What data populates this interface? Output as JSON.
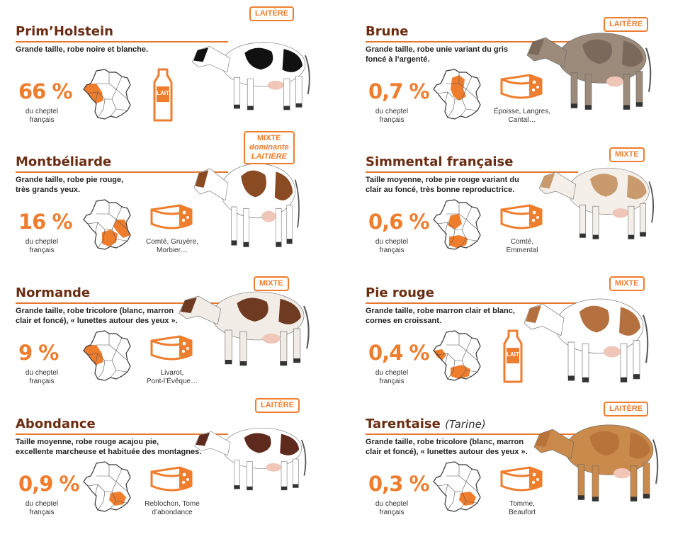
{
  "colors": {
    "accent": "#ef7d2e",
    "title": "#6b2d12"
  },
  "breeds": [
    {
      "name": "Prim’Holstein",
      "subtitle": "",
      "desc1": "Grande taille, robe noire et blanche.",
      "desc2": "",
      "percent": "66 %",
      "percent_caption1": "du cheptel",
      "percent_caption2": "français",
      "product_icon": "milk-bottle-icon",
      "product_label": "LAIT",
      "product_caption1": "",
      "product_caption2": "",
      "badge1": "LAITÈRE",
      "badge2": "",
      "badge3": "",
      "region": "north-west-france",
      "cow_colors": [
        "#111111",
        "#ffffff"
      ]
    },
    {
      "name": "Brune",
      "subtitle": "",
      "desc1": "Grande taille, robe unie variant du gris",
      "desc2": "foncé à l’argenté.",
      "percent": "0,7 %",
      "percent_caption1": "du cheptel",
      "percent_caption2": "français",
      "product_icon": "cheese-icon",
      "product_label": "",
      "product_caption1": "Époisse, Langres,",
      "product_caption2": "Cantal…",
      "badge1": "LAITÈRE",
      "badge2": "",
      "badge3": "",
      "region": "center-france",
      "cow_colors": [
        "#7b6a5c",
        "#9c8b7a"
      ]
    },
    {
      "name": "Montbéliarde",
      "subtitle": "",
      "desc1": "Grande taille, robe pie rouge,",
      "desc2": "très grands yeux.",
      "percent": "16 %",
      "percent_caption1": "du cheptel",
      "percent_caption2": "français",
      "product_icon": "cheese-icon",
      "product_label": "",
      "product_caption1": "Comté, Gruyère,",
      "product_caption2": "Morbier…",
      "badge1": "MIXTE",
      "badge2": "dominante",
      "badge3": "LAITIÈRE",
      "region": "east-and-south-france",
      "cow_colors": [
        "#8a4a22",
        "#ffffff"
      ]
    },
    {
      "name": "Simmental française",
      "subtitle": "",
      "desc1": "Taille moyenne, robe pie rouge variant du",
      "desc2": "clair au foncé, très bonne reproductrice.",
      "percent": "0,6 %",
      "percent_caption1": "du cheptel",
      "percent_caption2": "français",
      "product_icon": "cheese-icon",
      "product_label": "",
      "product_caption1": "Comté,",
      "product_caption2": "Emmental",
      "badge1": "MIXTE",
      "badge2": "",
      "badge3": "",
      "region": "center-and-south-france",
      "cow_colors": [
        "#c99a6e",
        "#f4efe8"
      ]
    },
    {
      "name": "Normande",
      "subtitle": "",
      "desc1": "Grande taille, robe tricolore (blanc, marron",
      "desc2": "clair et foncé), « lunettes autour des yeux ».",
      "percent": "9 %",
      "percent_caption1": "du cheptel",
      "percent_caption2": "français",
      "product_icon": "cheese-icon",
      "product_label": "",
      "product_caption1": "Livarot,",
      "product_caption2": "Pont-l’Évêque…",
      "badge1": "MIXTE",
      "badge2": "",
      "badge3": "",
      "region": "north-west-france",
      "cow_colors": [
        "#6e3a22",
        "#f2ece6"
      ]
    },
    {
      "name": "Pie rouge",
      "subtitle": "",
      "desc1": "Grande taille, robe marron clair et blanc,",
      "desc2": "cornes en croissant.",
      "percent": "0,4 %",
      "percent_caption1": "du cheptel",
      "percent_caption2": "français",
      "product_icon": "milk-bottle-icon",
      "product_label": "LAIT",
      "product_caption1": "",
      "product_caption2": "",
      "badge1": "MIXTE",
      "badge2": "",
      "badge3": "",
      "region": "west-and-south-france",
      "cow_colors": [
        "#b5703f",
        "#ffffff"
      ]
    },
    {
      "name": "Abondance",
      "subtitle": "",
      "desc1": "Taille moyenne, robe rouge acajou pie,",
      "desc2": "excellente marcheuse et habituée des montagnes.",
      "percent": "0,9 %",
      "percent_caption1": "du cheptel",
      "percent_caption2": "français",
      "product_icon": "cheese-icon",
      "product_label": "",
      "product_caption1": "Reblochon, Tome",
      "product_caption2": "d’abondance",
      "badge1": "LAITÈRE",
      "badge2": "",
      "badge3": "",
      "region": "south-east-france",
      "cow_colors": [
        "#5e2a1e",
        "#ffffff"
      ]
    },
    {
      "name": "Tarentaise",
      "subtitle": "(Tarine)",
      "desc1": "Grande taille, robe tricolore (blanc, marron",
      "desc2": "clair et foncé), « lunettes autour des yeux ».",
      "percent": "0,3 %",
      "percent_caption1": "du cheptel",
      "percent_caption2": "français",
      "product_icon": "cheese-icon",
      "product_label": "",
      "product_caption1": "Tomme,",
      "product_caption2": "Beaufort",
      "badge1": "LAITÈRE",
      "badge2": "",
      "badge3": "",
      "region": "south-east-france",
      "cow_colors": [
        "#b8733a",
        "#c98a4c"
      ]
    }
  ]
}
